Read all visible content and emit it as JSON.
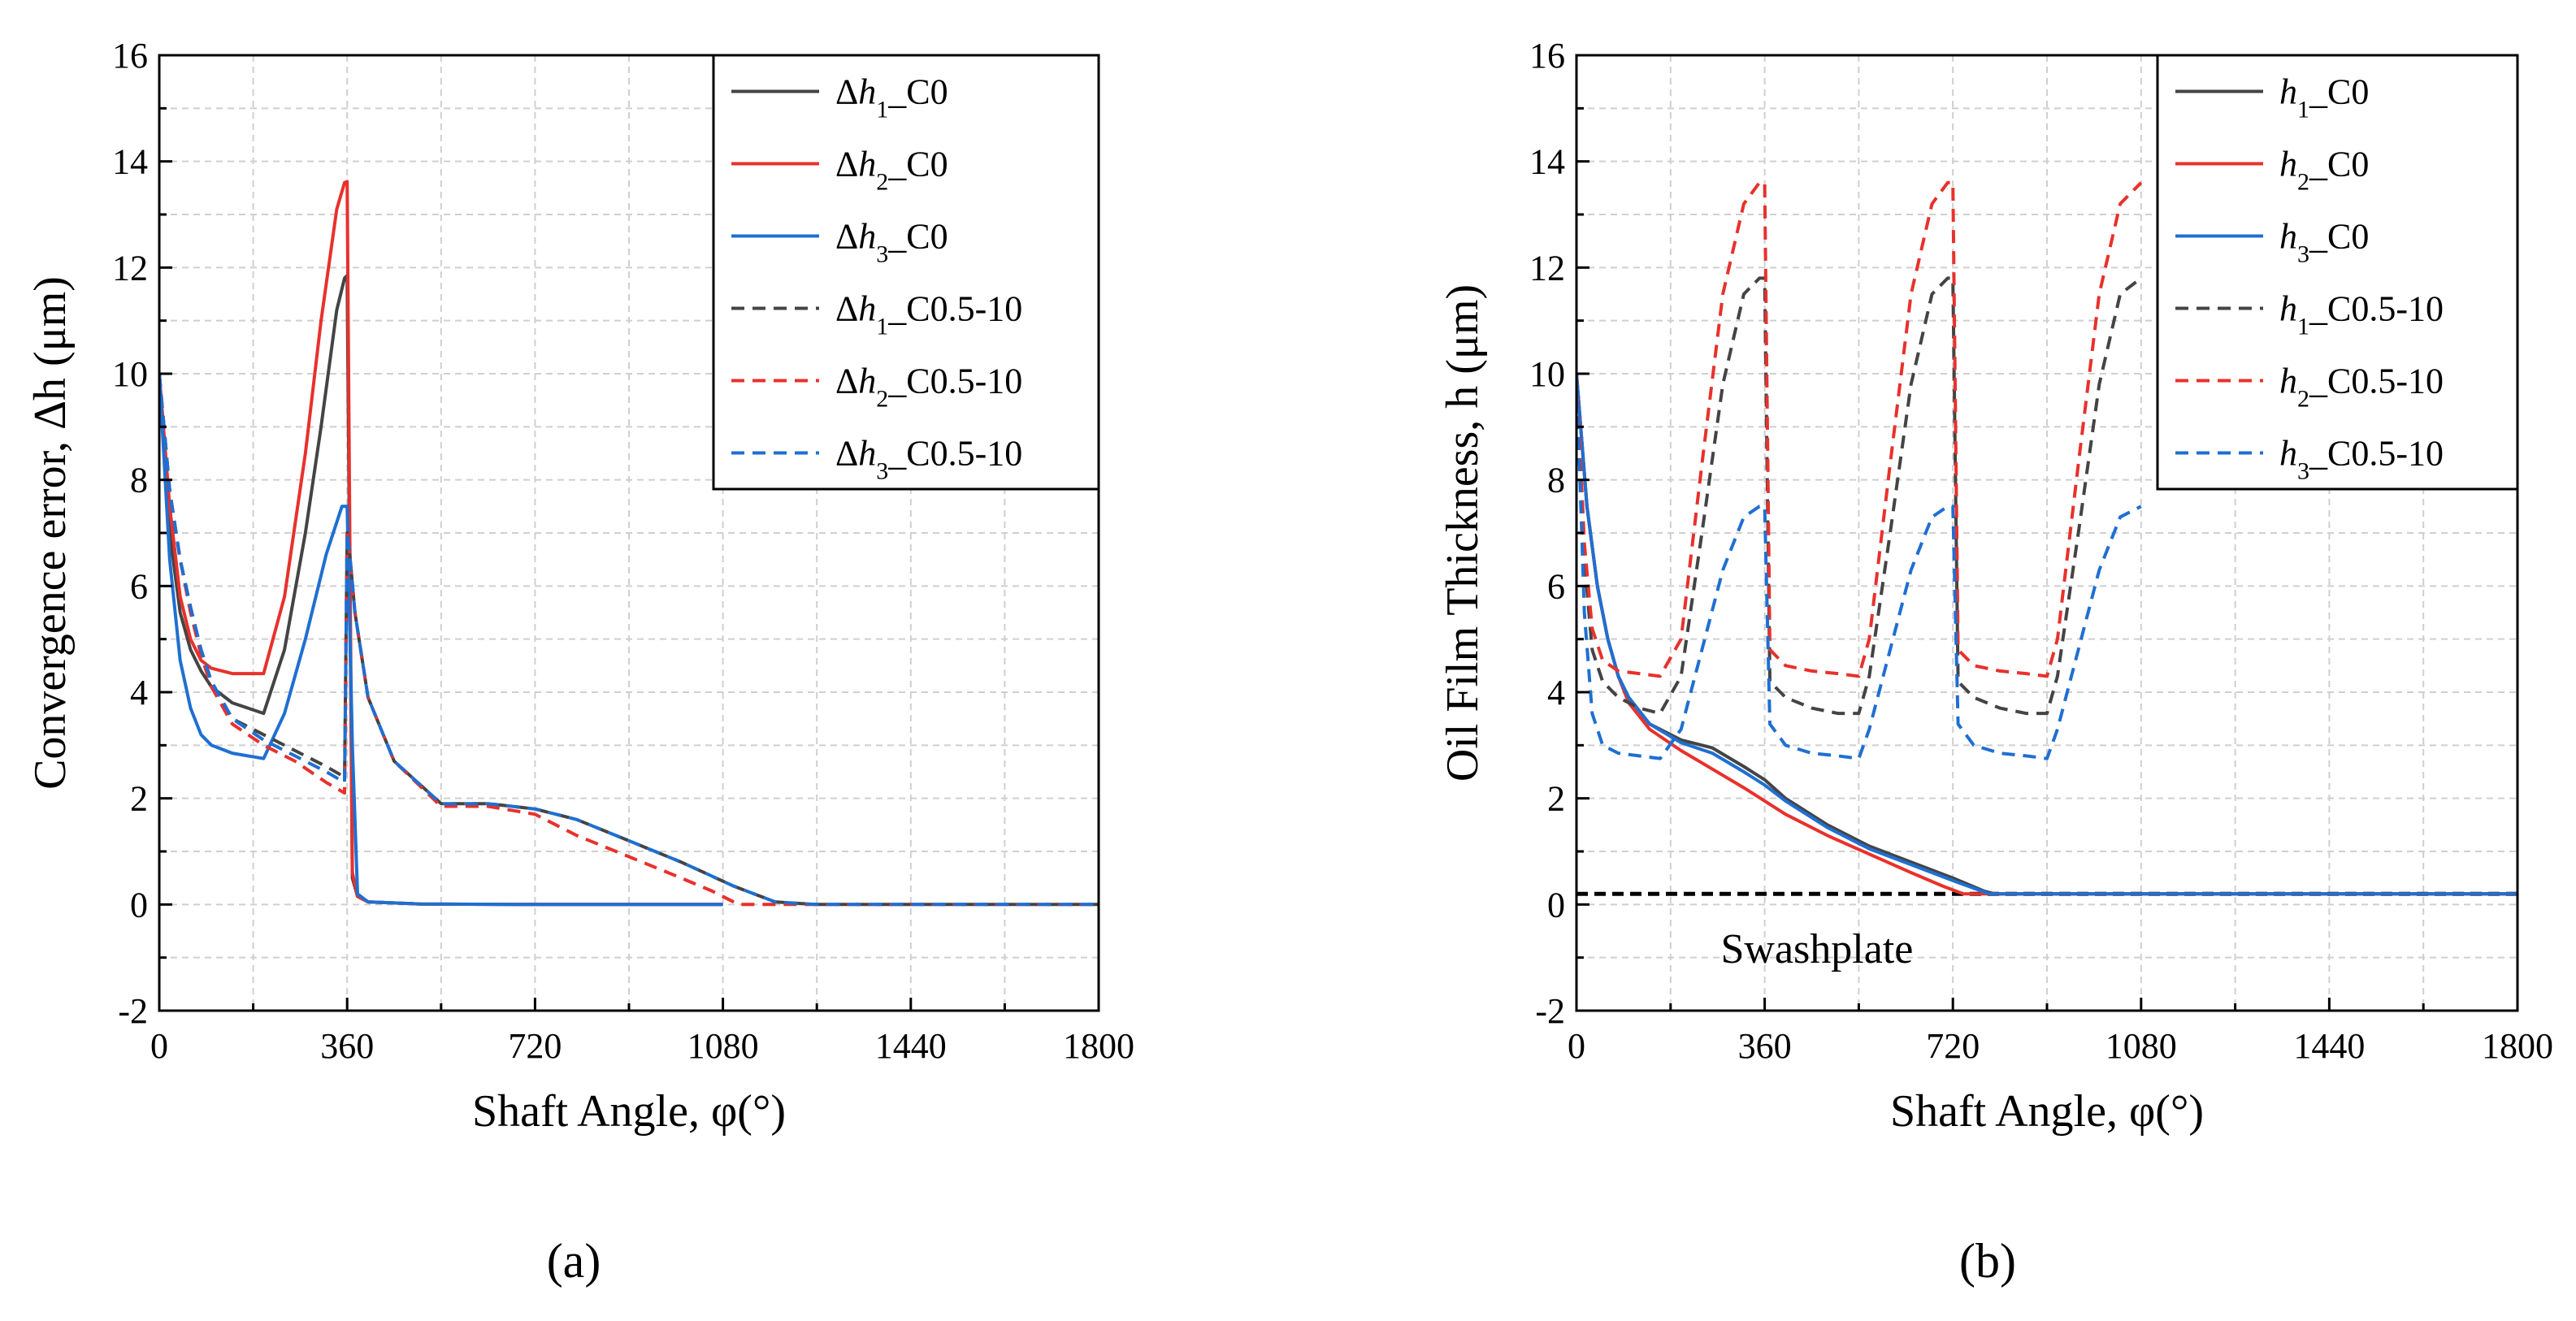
{
  "chart_data": [
    {
      "type": "line",
      "panel_label": "(a)",
      "xlabel": "Shaft Angle, φ(°)",
      "ylabel": "Convergence error, Δh (μm)",
      "xlim": [
        0,
        1800
      ],
      "ylim": [
        -2,
        16
      ],
      "xticks": [
        0,
        360,
        720,
        1080,
        1440,
        1800
      ],
      "yticks": [
        -2,
        0,
        2,
        4,
        6,
        8,
        10,
        12,
        14,
        16
      ],
      "grid": true,
      "legend_position": "top-right",
      "series": [
        {
          "name": "Δh1_C0",
          "prefix": "Δ",
          "italic": "h",
          "sub": "1",
          "suffix": "_C0",
          "color": "#444444",
          "dash": "solid",
          "x": [
            0,
            20,
            40,
            60,
            80,
            100,
            140,
            200,
            240,
            280,
            310,
            340,
            355,
            360,
            370,
            380,
            400,
            500,
            720,
            1080
          ],
          "y": [
            10,
            7,
            5.5,
            4.8,
            4.4,
            4.1,
            3.8,
            3.6,
            4.8,
            7.0,
            9.0,
            11.2,
            11.8,
            11.85,
            0.5,
            0.15,
            0.05,
            0.01,
            0,
            0
          ]
        },
        {
          "name": "Δh2_C0",
          "prefix": "Δ",
          "italic": "h",
          "sub": "2",
          "suffix": "_C0",
          "color": "#e8312c",
          "dash": "solid",
          "x": [
            0,
            20,
            40,
            60,
            80,
            100,
            140,
            200,
            240,
            280,
            310,
            340,
            355,
            360,
            370,
            380,
            400,
            500,
            720,
            1080
          ],
          "y": [
            10,
            7.5,
            5.8,
            5.0,
            4.6,
            4.45,
            4.35,
            4.35,
            5.8,
            8.5,
            11.0,
            13.1,
            13.6,
            13.62,
            0.6,
            0.15,
            0.05,
            0.01,
            0,
            0
          ]
        },
        {
          "name": "Δh3_C0",
          "prefix": "Δ",
          "italic": "h",
          "sub": "3",
          "suffix": "_C0",
          "color": "#1f6fd1",
          "dash": "solid",
          "x": [
            0,
            20,
            40,
            60,
            80,
            100,
            140,
            200,
            240,
            280,
            320,
            350,
            360,
            370,
            380,
            400,
            500,
            720,
            1080
          ],
          "y": [
            10,
            6.5,
            4.6,
            3.7,
            3.2,
            3.0,
            2.85,
            2.75,
            3.6,
            5.0,
            6.6,
            7.5,
            7.5,
            3.0,
            0.2,
            0.05,
            0.01,
            0,
            0
          ]
        },
        {
          "name": "Δh1_C0.5-10",
          "prefix": "Δ",
          "italic": "h",
          "sub": "1",
          "suffix": "_C0.5-10",
          "color": "#444444",
          "dash": "dashed",
          "x": [
            0,
            20,
            40,
            60,
            80,
            100,
            140,
            200,
            260,
            320,
            355,
            360,
            365,
            375,
            400,
            450,
            540,
            630,
            720,
            800,
            900,
            1000,
            1100,
            1180,
            1260,
            1400,
            1800
          ],
          "y": [
            10,
            7.8,
            6.5,
            5.6,
            4.8,
            4.2,
            3.5,
            3.2,
            2.9,
            2.6,
            2.4,
            7.0,
            6.6,
            5.5,
            3.9,
            2.7,
            1.9,
            1.9,
            1.8,
            1.6,
            1.2,
            0.8,
            0.35,
            0.05,
            0,
            0,
            0
          ]
        },
        {
          "name": "Δh2_C0.5-10",
          "prefix": "Δ",
          "italic": "h",
          "sub": "2",
          "suffix": "_C0.5-10",
          "color": "#e8312c",
          "dash": "dashed",
          "x": [
            0,
            20,
            40,
            60,
            80,
            100,
            140,
            200,
            260,
            320,
            355,
            360,
            365,
            375,
            400,
            450,
            540,
            630,
            720,
            800,
            900,
            1000,
            1060,
            1110,
            1200,
            1800
          ],
          "y": [
            10,
            7.8,
            6.5,
            5.5,
            4.7,
            4.1,
            3.4,
            3.0,
            2.7,
            2.3,
            2.1,
            7.0,
            6.6,
            5.5,
            3.9,
            2.7,
            1.85,
            1.85,
            1.7,
            1.3,
            0.9,
            0.5,
            0.25,
            0.0,
            0,
            0
          ]
        },
        {
          "name": "Δh3_C0.5-10",
          "prefix": "Δ",
          "italic": "h",
          "sub": "3",
          "suffix": "_C0.5-10",
          "color": "#1f6fd1",
          "dash": "dashed",
          "x": [
            0,
            20,
            40,
            60,
            80,
            100,
            140,
            200,
            260,
            320,
            355,
            360,
            365,
            375,
            400,
            450,
            540,
            630,
            720,
            800,
            900,
            1000,
            1100,
            1180,
            1260,
            1400,
            1800
          ],
          "y": [
            10,
            7.8,
            6.5,
            5.6,
            4.8,
            4.2,
            3.5,
            3.1,
            2.8,
            2.5,
            2.3,
            7.0,
            6.6,
            5.5,
            3.9,
            2.7,
            1.9,
            1.9,
            1.8,
            1.6,
            1.2,
            0.8,
            0.35,
            0.05,
            0,
            0,
            0
          ]
        }
      ]
    },
    {
      "type": "line",
      "panel_label": "(b)",
      "xlabel": "Shaft Angle, φ(°)",
      "ylabel": "Oil Film Thickness, h (μm)",
      "xlim": [
        0,
        1800
      ],
      "ylim": [
        -2,
        16
      ],
      "xticks": [
        0,
        360,
        720,
        1080,
        1440,
        1800
      ],
      "yticks": [
        -2,
        0,
        2,
        4,
        6,
        8,
        10,
        12,
        14,
        16
      ],
      "grid": true,
      "legend_position": "top-right",
      "annotation": "Swashplate",
      "reference_line": {
        "y": 0.2,
        "color": "#000000",
        "dash": "dashed"
      },
      "series": [
        {
          "name": "h1_C0",
          "prefix": "",
          "italic": "h",
          "sub": "1",
          "suffix": "_C0",
          "color": "#444444",
          "dash": "solid",
          "x": [
            0,
            20,
            40,
            60,
            80,
            100,
            140,
            200,
            260,
            320,
            360,
            400,
            480,
            560,
            640,
            720,
            780,
            800,
            840,
            1080,
            1800
          ],
          "y": [
            10,
            7.5,
            6.0,
            5.0,
            4.3,
            3.9,
            3.4,
            3.1,
            2.95,
            2.6,
            2.35,
            2.0,
            1.5,
            1.1,
            0.8,
            0.5,
            0.25,
            0.2,
            0.2,
            0.2,
            0.2
          ]
        },
        {
          "name": "h2_C0",
          "prefix": "",
          "italic": "h",
          "sub": "2",
          "suffix": "_C0",
          "color": "#e8312c",
          "dash": "solid",
          "x": [
            0,
            20,
            40,
            60,
            80,
            100,
            140,
            200,
            260,
            320,
            360,
            400,
            480,
            560,
            640,
            700,
            740,
            760,
            1080,
            1800
          ],
          "y": [
            10,
            7.5,
            6.0,
            5.0,
            4.3,
            3.8,
            3.3,
            2.9,
            2.55,
            2.2,
            1.95,
            1.7,
            1.3,
            0.95,
            0.6,
            0.35,
            0.2,
            0.2,
            0.2,
            0.2
          ]
        },
        {
          "name": "h3_C0",
          "prefix": "",
          "italic": "h",
          "sub": "3",
          "suffix": "_C0",
          "color": "#1f6fd1",
          "dash": "solid",
          "x": [
            0,
            20,
            40,
            60,
            80,
            100,
            140,
            200,
            260,
            320,
            360,
            400,
            480,
            560,
            640,
            720,
            790,
            820,
            1080,
            1800
          ],
          "y": [
            10,
            7.5,
            6.0,
            5.0,
            4.3,
            3.9,
            3.4,
            3.05,
            2.85,
            2.5,
            2.25,
            1.95,
            1.45,
            1.05,
            0.75,
            0.45,
            0.2,
            0.2,
            0.2,
            0.2
          ]
        },
        {
          "name": "h1_C0.5-10",
          "prefix": "",
          "italic": "h",
          "sub": "1",
          "suffix": "_C0.5-10",
          "color": "#444444",
          "dash": "dashed",
          "x": [
            0,
            15,
            30,
            50,
            80,
            120,
            160,
            200,
            240,
            280,
            320,
            350,
            360,
            370,
            400,
            450,
            500,
            540,
            560,
            600,
            640,
            680,
            710,
            720,
            730,
            760,
            810,
            860,
            900,
            920,
            960,
            1000,
            1040,
            1080
          ],
          "y": [
            10,
            6.5,
            4.8,
            4.2,
            3.9,
            3.7,
            3.6,
            4.3,
            7.0,
            9.8,
            11.5,
            11.8,
            11.8,
            4.2,
            3.9,
            3.7,
            3.6,
            3.6,
            4.3,
            7.0,
            9.8,
            11.5,
            11.8,
            11.8,
            4.2,
            3.9,
            3.7,
            3.6,
            3.6,
            4.3,
            7.0,
            9.8,
            11.5,
            11.8
          ]
        },
        {
          "name": "h2_C0.5-10",
          "prefix": "",
          "italic": "h",
          "sub": "2",
          "suffix": "_C0.5-10",
          "color": "#e8312c",
          "dash": "dashed",
          "x": [
            0,
            15,
            30,
            50,
            80,
            120,
            160,
            200,
            240,
            280,
            320,
            350,
            360,
            370,
            400,
            450,
            500,
            540,
            560,
            600,
            640,
            680,
            710,
            720,
            730,
            760,
            810,
            860,
            900,
            920,
            960,
            1000,
            1040,
            1080
          ],
          "y": [
            10,
            6.8,
            5.2,
            4.6,
            4.4,
            4.35,
            4.3,
            5.0,
            8.3,
            11.5,
            13.2,
            13.6,
            13.6,
            4.8,
            4.5,
            4.4,
            4.35,
            4.3,
            5.0,
            8.3,
            11.5,
            13.2,
            13.6,
            13.6,
            4.8,
            4.5,
            4.4,
            4.35,
            4.3,
            5.0,
            8.3,
            11.5,
            13.2,
            13.6
          ]
        },
        {
          "name": "h3_C0.5-10",
          "prefix": "",
          "italic": "h",
          "sub": "3",
          "suffix": "_C0.5-10",
          "color": "#1f6fd1",
          "dash": "dashed",
          "x": [
            0,
            15,
            30,
            50,
            80,
            120,
            160,
            200,
            240,
            280,
            320,
            350,
            360,
            370,
            400,
            450,
            500,
            540,
            560,
            600,
            640,
            680,
            710,
            720,
            730,
            760,
            810,
            860,
            900,
            920,
            960,
            1000,
            1040,
            1080
          ],
          "y": [
            10,
            5.5,
            3.6,
            3.0,
            2.85,
            2.8,
            2.75,
            3.3,
            4.8,
            6.3,
            7.3,
            7.5,
            7.5,
            3.4,
            3.0,
            2.85,
            2.8,
            2.75,
            3.3,
            4.8,
            6.3,
            7.3,
            7.5,
            7.5,
            3.4,
            3.0,
            2.85,
            2.8,
            2.75,
            3.3,
            4.8,
            6.3,
            7.3,
            7.5
          ]
        }
      ]
    }
  ]
}
